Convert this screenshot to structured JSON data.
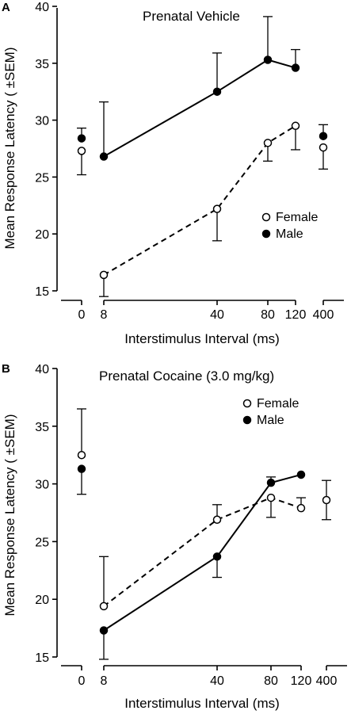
{
  "chart_data": [
    {
      "type": "line",
      "panel_label": "A",
      "title": "Prenatal Vehicle",
      "xlabel": "Interstimulus Interval (ms)",
      "ylabel": "Mean Response Latency ( ±SEM)",
      "ylim": [
        15,
        40
      ],
      "yticks": [
        "15",
        "20",
        "25",
        "30",
        "35",
        "40"
      ],
      "x_segments": [
        {
          "ticks": [
            "0"
          ]
        },
        {
          "ticks": [
            "8",
            "40",
            "80",
            "120"
          ]
        },
        {
          "ticks": [
            "400"
          ]
        }
      ],
      "legend": {
        "position": "lower-right",
        "entries": [
          "Female",
          "Male"
        ]
      },
      "series": [
        {
          "name": "Female",
          "marker": "open-circle",
          "line": "dashed",
          "points": [
            {
              "x": "0",
              "y": 27.3,
              "err": 2.1,
              "connected": false,
              "err_dir": "down"
            },
            {
              "x": "8",
              "y": 16.4,
              "err": 1.9,
              "connected": true,
              "err_dir": "down"
            },
            {
              "x": "40",
              "y": 22.2,
              "err": 2.8,
              "connected": true,
              "err_dir": "down"
            },
            {
              "x": "80",
              "y": 28.0,
              "err": 1.6,
              "connected": true,
              "err_dir": "down"
            },
            {
              "x": "120",
              "y": 29.5,
              "err": 2.1,
              "connected": true,
              "err_dir": "down"
            },
            {
              "x": "400",
              "y": 27.6,
              "err": 1.9,
              "connected": false,
              "err_dir": "down"
            }
          ]
        },
        {
          "name": "Male",
          "marker": "filled-circle",
          "line": "solid",
          "points": [
            {
              "x": "0",
              "y": 28.4,
              "err": 0.9,
              "connected": false,
              "err_dir": "up"
            },
            {
              "x": "8",
              "y": 26.8,
              "err": 4.8,
              "connected": true,
              "err_dir": "up"
            },
            {
              "x": "40",
              "y": 32.5,
              "err": 3.4,
              "connected": true,
              "err_dir": "up"
            },
            {
              "x": "80",
              "y": 35.3,
              "err": 3.8,
              "connected": true,
              "err_dir": "up"
            },
            {
              "x": "120",
              "y": 34.6,
              "err": 1.6,
              "connected": true,
              "err_dir": "up"
            },
            {
              "x": "400",
              "y": 28.6,
              "err": 1.0,
              "connected": false,
              "err_dir": "up"
            }
          ]
        }
      ]
    },
    {
      "type": "line",
      "panel_label": "B",
      "title": "Prenatal Cocaine (3.0 mg/kg)",
      "xlabel": "Interstimulus Interval (ms)",
      "ylabel": "Mean Response Latency ( ±SEM)",
      "ylim": [
        15,
        40
      ],
      "yticks": [
        "15",
        "20",
        "25",
        "30",
        "35",
        "40"
      ],
      "x_segments": [
        {
          "ticks": [
            "0"
          ]
        },
        {
          "ticks": [
            "8",
            "40",
            "80",
            "120"
          ]
        },
        {
          "ticks": [
            "400"
          ]
        }
      ],
      "legend": {
        "position": "top-right",
        "entries": [
          "Female",
          "Male"
        ]
      },
      "series": [
        {
          "name": "Female",
          "marker": "open-circle",
          "line": "dashed",
          "points": [
            {
              "x": "0",
              "y": 32.5,
              "err": 4.0,
              "connected": false,
              "err_dir": "up"
            },
            {
              "x": "8",
              "y": 19.4,
              "err": 4.3,
              "connected": true,
              "err_dir": "up"
            },
            {
              "x": "40",
              "y": 26.9,
              "err": 1.3,
              "connected": true,
              "err_dir": "up"
            },
            {
              "x": "80",
              "y": 28.8,
              "err": 1.7,
              "connected": true,
              "err_dir": "down"
            },
            {
              "x": "120",
              "y": 27.9,
              "err": 0.9,
              "connected": true,
              "err_dir": "up"
            },
            {
              "x": "400",
              "y": 28.6,
              "err": 1.7,
              "connected": false,
              "err_dir": "both"
            }
          ]
        },
        {
          "name": "Male",
          "marker": "filled-circle",
          "line": "solid",
          "points": [
            {
              "x": "0",
              "y": 31.3,
              "err": 2.2,
              "connected": false,
              "err_dir": "down"
            },
            {
              "x": "8",
              "y": 17.3,
              "err": 2.5,
              "connected": true,
              "err_dir": "down"
            },
            {
              "x": "40",
              "y": 23.7,
              "err": 1.8,
              "connected": true,
              "err_dir": "down"
            },
            {
              "x": "80",
              "y": 30.1,
              "err": 0.5,
              "connected": true,
              "err_dir": "up"
            },
            {
              "x": "120",
              "y": 30.8,
              "err": 0.0,
              "connected": true,
              "err_dir": "up"
            }
          ]
        }
      ]
    }
  ]
}
